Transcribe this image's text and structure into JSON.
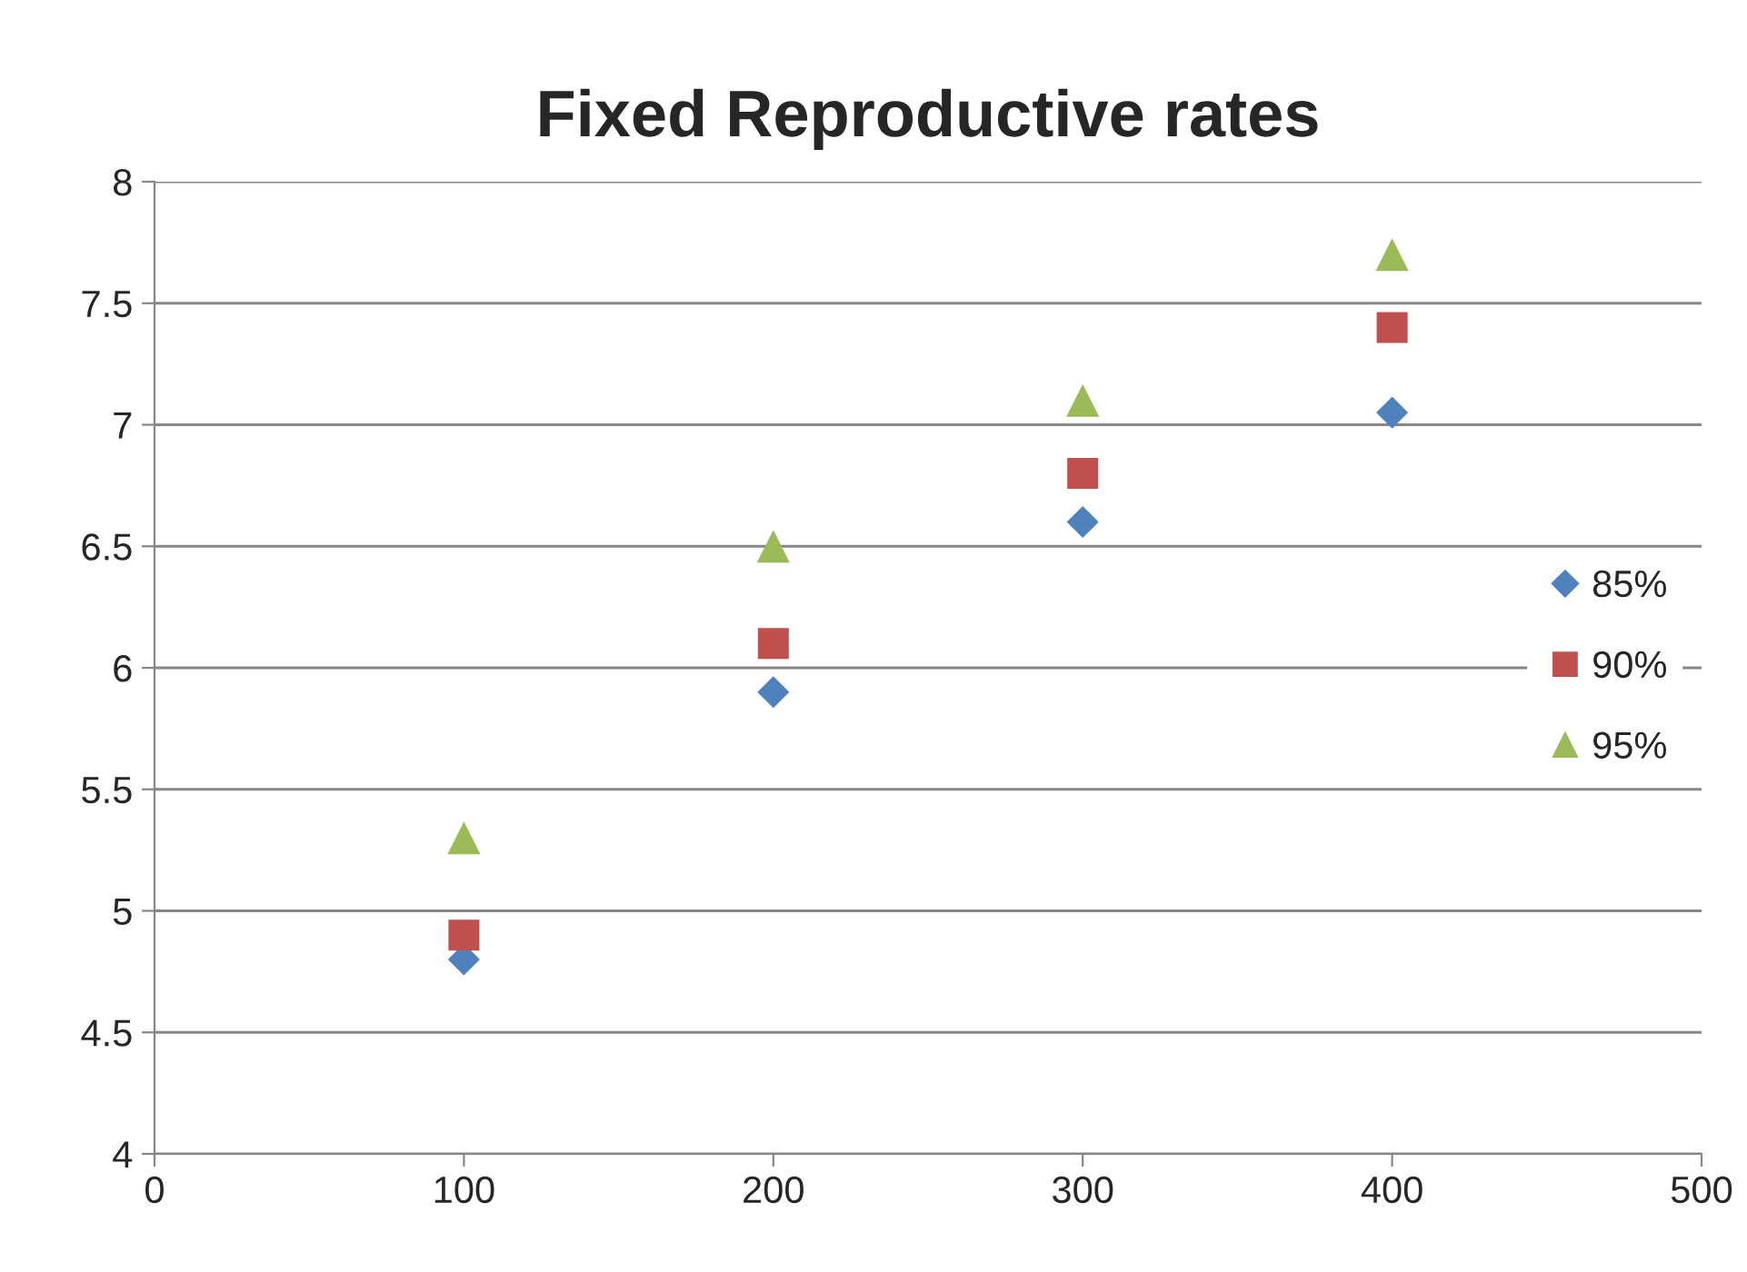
{
  "chart_data": {
    "type": "scatter",
    "title": "Fixed Reproductive rates",
    "x": [
      100,
      200,
      300,
      400
    ],
    "series": [
      {
        "name": "85%",
        "color": "#4f81bd",
        "marker": "diamond",
        "values": [
          4.8,
          5.9,
          6.6,
          7.05
        ]
      },
      {
        "name": "90%",
        "color": "#c0504d",
        "marker": "square",
        "values": [
          4.9,
          6.1,
          6.8,
          7.4
        ]
      },
      {
        "name": "95%",
        "color": "#9bbb59",
        "marker": "triangle",
        "values": [
          5.3,
          6.5,
          7.1,
          7.7
        ]
      }
    ],
    "xlim": [
      0,
      500
    ],
    "xticks": [
      0,
      100,
      200,
      300,
      400,
      500
    ],
    "ylim": [
      4,
      8
    ],
    "yticks": [
      4,
      4.5,
      5,
      5.5,
      6,
      6.5,
      7,
      7.5,
      8
    ],
    "grid": "y",
    "legend": "right"
  }
}
